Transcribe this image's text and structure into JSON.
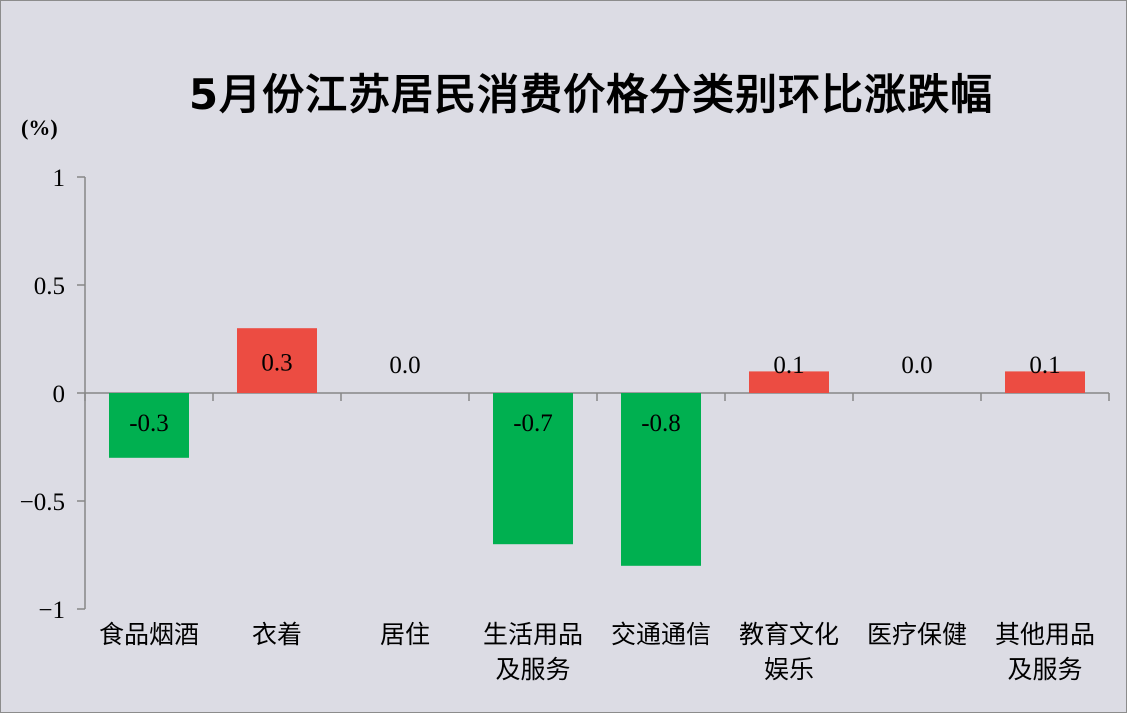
{
  "chart_data": {
    "type": "bar",
    "title": "5月份江苏居民消费价格分类别环比涨跌幅",
    "unit": "(%)",
    "categories": [
      [
        "食品烟酒"
      ],
      [
        "衣着"
      ],
      [
        "居住"
      ],
      [
        "生活用品",
        "及服务"
      ],
      [
        "交通通信"
      ],
      [
        "教育文化",
        "娱乐"
      ],
      [
        "医疗保健"
      ],
      [
        "其他用品",
        "及服务"
      ]
    ],
    "values": [
      -0.3,
      0.3,
      0.0,
      -0.7,
      -0.8,
      0.1,
      0.0,
      0.1
    ],
    "value_labels": [
      "-0.3",
      "0.3",
      "0.0",
      "-0.7",
      "-0.8",
      "0.1",
      "0.0",
      "0.1"
    ],
    "yticks": [
      "1",
      "0.5",
      "0",
      "−0.5",
      "−1"
    ],
    "ytick_values": [
      1,
      0.5,
      0,
      -0.5,
      -1
    ],
    "ylim": [
      -1,
      1
    ],
    "grid": false,
    "legend": "none",
    "colors": {
      "positive": "#ec4c42",
      "negative": "#00b050",
      "axis": "#868686",
      "background": "#dcdce4"
    }
  }
}
